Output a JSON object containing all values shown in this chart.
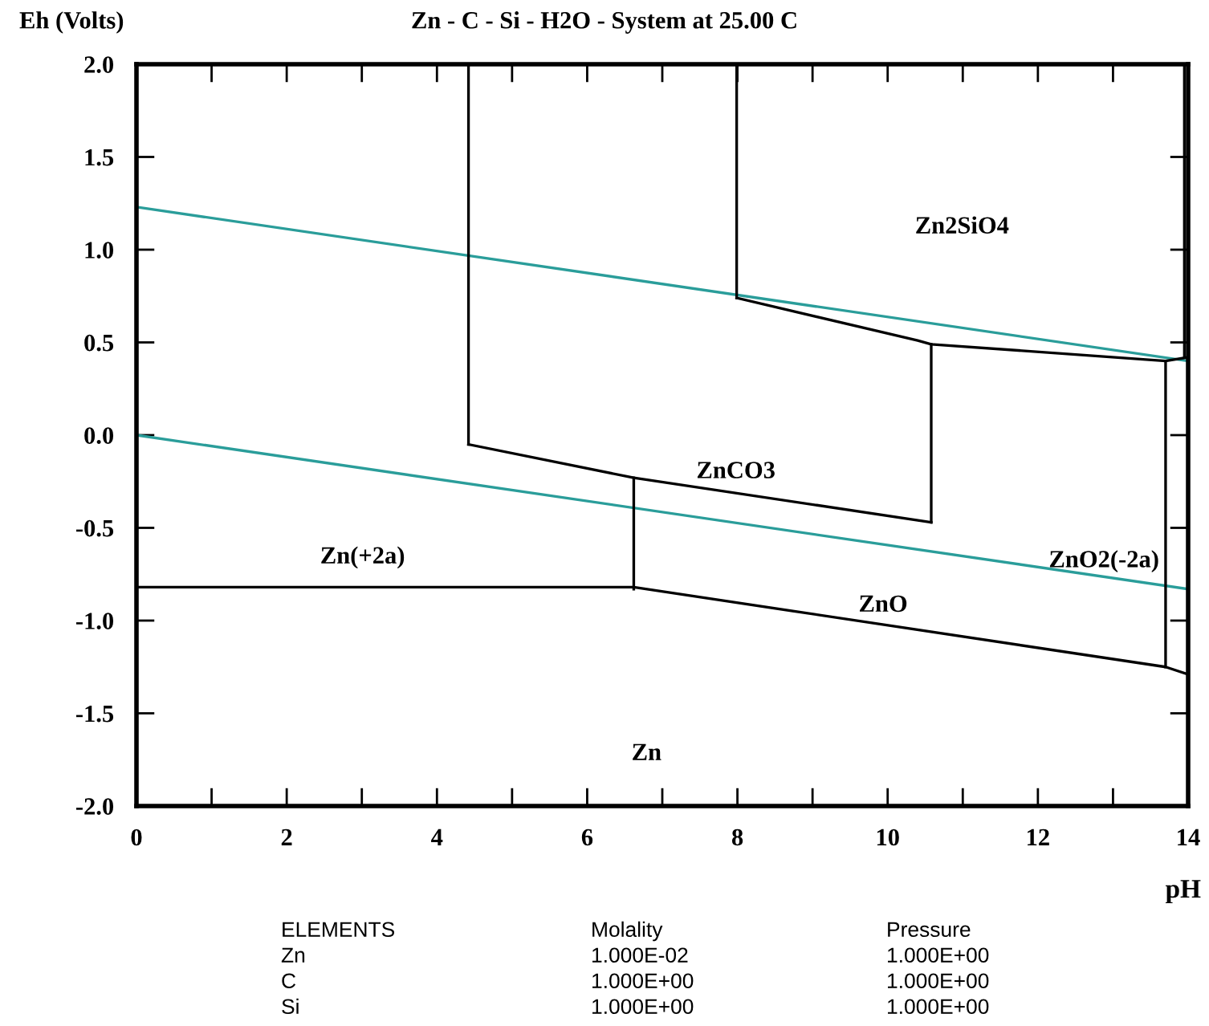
{
  "chart_data": {
    "type": "line",
    "title": "Zn - C - Si - H2O - System at 25.00 C",
    "xlabel": "pH",
    "ylabel": "Eh (Volts)",
    "xlim": [
      0,
      14
    ],
    "ylim": [
      -2.0,
      2.0
    ],
    "xticks": [
      0,
      {
        "value": 1,
        "label": null
      },
      2,
      {
        "value": 3,
        "label": null
      },
      4,
      {
        "value": 5,
        "label": null
      },
      6,
      {
        "value": 7,
        "label": null
      },
      8,
      {
        "value": 9,
        "label": null
      },
      10,
      {
        "value": 11,
        "label": null
      },
      12,
      {
        "value": 13,
        "label": null
      },
      14
    ],
    "yticks": [
      {
        "value": -2.0,
        "label": "-2.0"
      },
      {
        "value": -1.5,
        "label": "-1.5"
      },
      {
        "value": -1.0,
        "label": "-1.0"
      },
      {
        "value": -0.5,
        "label": "-0.5"
      },
      {
        "value": 0.0,
        "label": "0.0"
      },
      {
        "value": 0.5,
        "label": "0.5"
      },
      {
        "value": 1.0,
        "label": "1.0"
      },
      {
        "value": 1.5,
        "label": "1.5"
      },
      {
        "value": 2.0,
        "label": "2.0"
      }
    ],
    "grid": false,
    "marker": "none",
    "line_style": "solid",
    "series": [
      {
        "color": "#2a9d9a",
        "x": [
          0,
          14
        ],
        "values": [
          1.23,
          0.4
        ]
      },
      {
        "color": "#2a9d9a",
        "x": [
          0,
          14
        ],
        "values": [
          0.0,
          -0.83
        ]
      },
      {
        "color": "#000000",
        "x": [
          4.42,
          4.42
        ],
        "values": [
          2.0,
          -0.05
        ]
      },
      {
        "color": "#000000",
        "x": [
          4.42,
          6.62,
          10.58
        ],
        "values": [
          -0.05,
          -0.23,
          -0.47
        ]
      },
      {
        "color": "#000000",
        "x": [
          10.58,
          10.58
        ],
        "values": [
          -0.47,
          0.49
        ]
      },
      {
        "color": "#000000",
        "x": [
          6.62,
          6.62
        ],
        "values": [
          -0.23,
          -0.83
        ]
      },
      {
        "color": "#000000",
        "x": [
          0,
          6.62,
          13.7,
          14
        ],
        "values": [
          -0.82,
          -0.82,
          -1.25,
          -1.29
        ]
      },
      {
        "color": "#000000",
        "x": [
          7.99,
          7.99
        ],
        "values": [
          2.0,
          0.74
        ]
      },
      {
        "color": "#000000",
        "x": [
          7.99,
          10.4,
          10.58,
          13.7,
          14
        ],
        "values": [
          0.74,
          0.51,
          0.49,
          0.4,
          0.42
        ]
      },
      {
        "color": "#000000",
        "x": [
          13.7,
          13.7
        ],
        "values": [
          0.4,
          -1.25
        ]
      },
      {
        "color": "#000000",
        "x": [
          13.95,
          13.95
        ],
        "values": [
          2.0,
          0.42
        ]
      }
    ],
    "annotations": [
      "Zn2SiO4",
      "ZnCO3",
      "ZnO2(-2a)",
      "Zn(+2a)",
      "ZnO",
      "Zn",
      "ELEMENTS",
      "Molality",
      "Pressure",
      "Zn",
      "1.000E-02",
      "1.000E+00",
      "C",
      "1.000E+00",
      "1.000E+00",
      "Si",
      "1.000E+00",
      "1.000E+00"
    ]
  }
}
